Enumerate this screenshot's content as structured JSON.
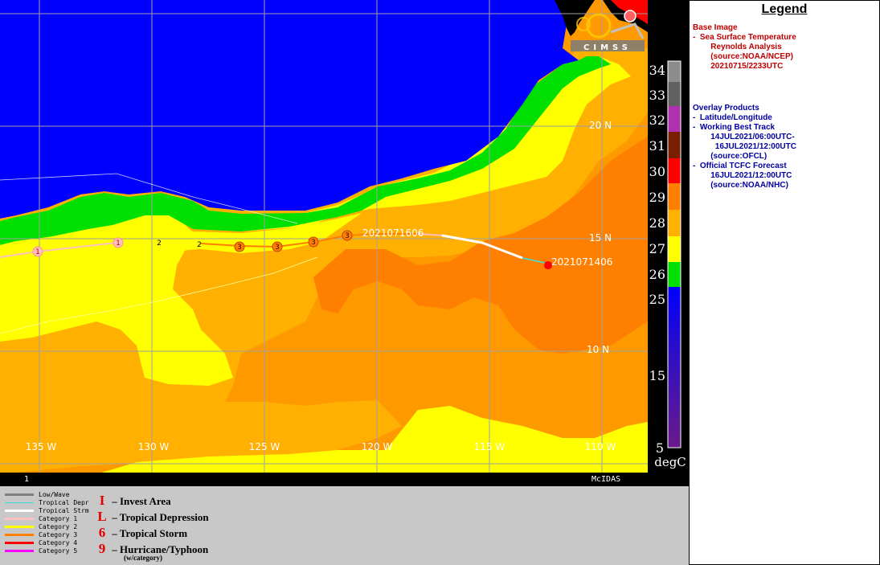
{
  "map": {
    "lat_labels": [
      "20 N",
      "15 N",
      "10 N"
    ],
    "lon_labels": [
      "135 W",
      "130 W",
      "125 W",
      "120 W",
      "115 W",
      "110 W"
    ],
    "footer_left": "1",
    "footer_right": "McIDAS",
    "track_start_label": "2021071406",
    "track_end_label": "2021071606",
    "track_intensity_markers": [
      "1",
      "1",
      "2",
      "2",
      "3",
      "3",
      "3",
      "3"
    ],
    "logo_text": "CIMSS"
  },
  "colorbar": {
    "labels": [
      "34",
      "33",
      "32",
      "31",
      "30",
      "29",
      "28",
      "27",
      "26",
      "25",
      "15",
      "5"
    ],
    "unit": "degC",
    "colors": [
      "#8c8c8c",
      "#606060",
      "#b030b0",
      "#7a1e00",
      "#ff0000",
      "#ff8000",
      "#ffb000",
      "#ffff00",
      "#00e000",
      "#0000ff",
      "#5a1a8a"
    ]
  },
  "legend": {
    "title": "Legend",
    "base_image_heading": "Base Image",
    "base_image_lines": [
      "-  Sea Surface Temperature",
      "        Reynolds Analysis",
      "        (source:NOAA/NCEP)",
      "        20210715/2233UTC"
    ],
    "overlay_heading": "Overlay Products",
    "overlay_lines": [
      "-  Latitude/Longitude",
      "-  Working Best Track",
      "        14JUL2021/06:00UTC-",
      "          16JUL2021/12:00UTC",
      "        (source:OFCL)",
      "-  Official TCFC Forecast",
      "        16JUL2021/12:00UTC",
      "        (source:NOAA/NHC)"
    ]
  },
  "track_legend": {
    "items": [
      {
        "label": "Low/Wave",
        "color": "#808080"
      },
      {
        "label": "Tropical Depr",
        "color": "#40e0e0"
      },
      {
        "label": "Tropical Strm",
        "color": "#ffffff"
      },
      {
        "label": "Category 1",
        "color": "#ffc0c0"
      },
      {
        "label": "Category 2",
        "color": "#ffff00"
      },
      {
        "label": "Category 3",
        "color": "#ff8000"
      },
      {
        "label": "Category 4",
        "color": "#ff0000"
      },
      {
        "label": "Category 5",
        "color": "#ff00ff"
      }
    ],
    "symbols": [
      {
        "glyph": "I",
        "label": "– Invest Area"
      },
      {
        "glyph": "L",
        "label": "– Tropical Depression"
      },
      {
        "glyph": "6",
        "label": "– Tropical Storm"
      },
      {
        "glyph": "9",
        "label": "– Hurricane/Typhoon"
      }
    ],
    "symbols_note": "(w/category)"
  }
}
